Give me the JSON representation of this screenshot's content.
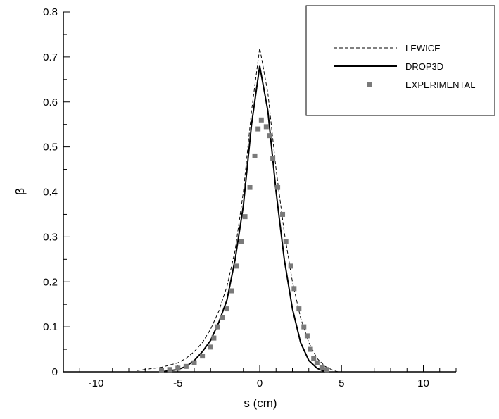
{
  "chart_data": {
    "type": "line",
    "title": "",
    "xlabel": "s (cm)",
    "ylabel": "β",
    "xlim": [
      -12,
      12
    ],
    "ylim": [
      0,
      0.8
    ],
    "x_ticks": [
      -10,
      -5,
      0,
      5,
      10
    ],
    "x_tick_labels": [
      "-10",
      "-5",
      "0",
      "5",
      "10"
    ],
    "y_ticks": [
      0,
      0.1,
      0.2,
      0.3,
      0.4,
      0.5,
      0.6,
      0.7,
      0.8
    ],
    "y_tick_labels": [
      "0",
      "0.1",
      "0.2",
      "0.3",
      "0.4",
      "0.5",
      "0.6",
      "0.7",
      "0.8"
    ],
    "grid": false,
    "legend_position": "top-right",
    "series": [
      {
        "name": "LEWICE",
        "style": "dashed-line",
        "color": "#000000",
        "x": [
          -7.5,
          -6,
          -5,
          -4.5,
          -4,
          -3.5,
          -3,
          -2.5,
          -2,
          -1.5,
          -1,
          -0.5,
          0,
          0.5,
          1,
          1.5,
          2,
          2.5,
          3,
          3.5,
          4,
          4.5,
          4.8
        ],
        "y": [
          0.003,
          0.01,
          0.02,
          0.03,
          0.045,
          0.065,
          0.095,
          0.135,
          0.19,
          0.27,
          0.4,
          0.58,
          0.72,
          0.62,
          0.45,
          0.31,
          0.2,
          0.12,
          0.065,
          0.03,
          0.012,
          0.003,
          0
        ]
      },
      {
        "name": "DROP3D",
        "style": "solid-line",
        "color": "#000000",
        "x": [
          -6,
          -5,
          -4.5,
          -4,
          -3.5,
          -3,
          -2.5,
          -2,
          -1.5,
          -1,
          -0.5,
          0,
          0.5,
          1,
          1.5,
          2,
          2.5,
          3,
          3.5,
          4
        ],
        "y": [
          0,
          0.005,
          0.012,
          0.025,
          0.045,
          0.07,
          0.11,
          0.16,
          0.25,
          0.37,
          0.55,
          0.68,
          0.58,
          0.4,
          0.25,
          0.14,
          0.065,
          0.025,
          0.008,
          0
        ]
      },
      {
        "name": "EXPERIMENTAL",
        "style": "markers",
        "color": "#7a7a7a",
        "x": [
          -6.0,
          -5.5,
          -5.0,
          -4.5,
          -4.0,
          -3.5,
          -3.0,
          -2.8,
          -2.6,
          -2.3,
          -2.0,
          -1.7,
          -1.4,
          -1.1,
          -0.9,
          -0.6,
          -0.3,
          -0.1,
          0.1,
          0.4,
          0.6,
          0.8,
          1.1,
          1.4,
          1.6,
          1.9,
          2.1,
          2.4,
          2.7,
          2.9,
          3.1,
          3.3,
          3.5,
          3.8,
          4.1
        ],
        "y": [
          0.003,
          0.005,
          0.008,
          0.012,
          0.02,
          0.035,
          0.055,
          0.075,
          0.1,
          0.12,
          0.14,
          0.18,
          0.235,
          0.29,
          0.345,
          0.41,
          0.48,
          0.54,
          0.56,
          0.545,
          0.525,
          0.475,
          0.41,
          0.35,
          0.29,
          0.235,
          0.185,
          0.14,
          0.1,
          0.08,
          0.05,
          0.03,
          0.02,
          0.01,
          0.005
        ]
      }
    ]
  }
}
